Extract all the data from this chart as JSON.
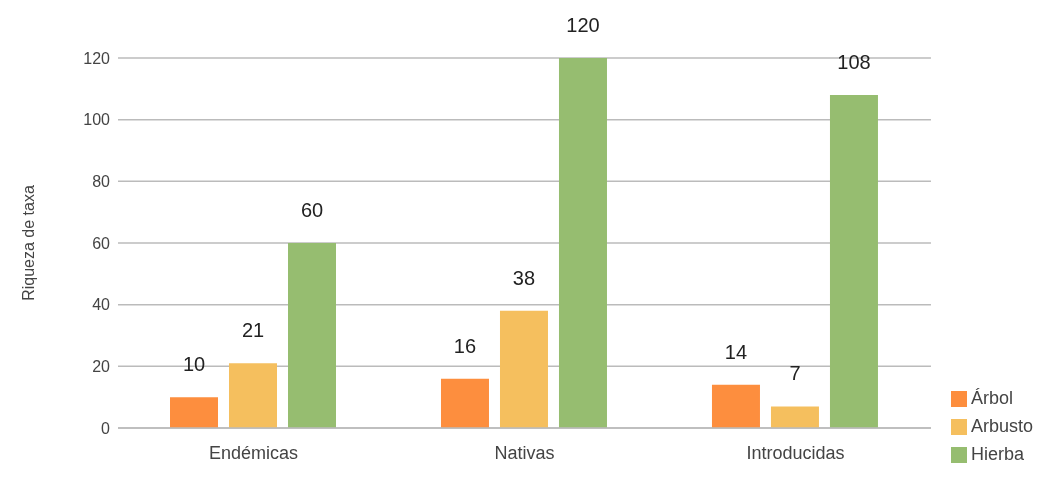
{
  "chart_data": {
    "type": "bar",
    "ylabel": "Riqueza de taxa",
    "categories": [
      "Endémicas",
      "Nativas",
      "Introducidas"
    ],
    "series": [
      {
        "name": "Árbol",
        "color": "#fd8e3e",
        "values": [
          10,
          16,
          14
        ]
      },
      {
        "name": "Arbusto",
        "color": "#f5bf5e",
        "values": [
          21,
          38,
          7
        ]
      },
      {
        "name": "Hierba",
        "color": "#96bd70",
        "values": [
          60,
          120,
          108
        ]
      }
    ],
    "ylim": [
      0,
      120
    ],
    "yticks": [
      0,
      20,
      40,
      60,
      80,
      100,
      120
    ],
    "grid": "y",
    "legend": "bottom right",
    "data_labels": true
  }
}
